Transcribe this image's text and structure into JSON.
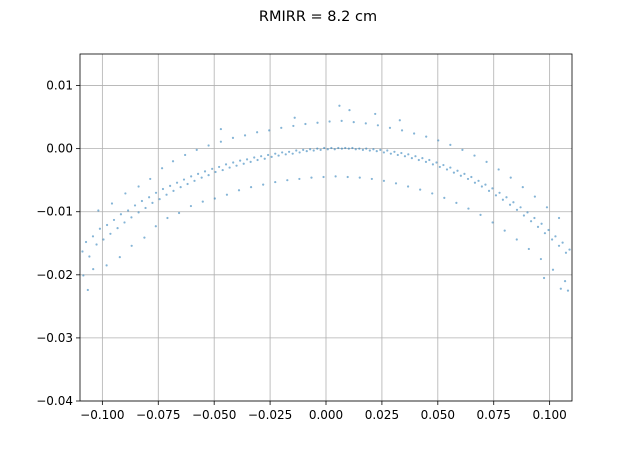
{
  "chart_data": {
    "type": "scatter",
    "title": "RMIRR = 8.2 cm",
    "xlabel": "",
    "ylabel": "",
    "xlim": [
      -0.11,
      0.11
    ],
    "ylim": [
      -0.04,
      0.015
    ],
    "grid": true,
    "marker_color": "#1f77b4",
    "marker_alpha": 0.55,
    "x_ticks": [
      {
        "value": -0.1,
        "label": "−0.100"
      },
      {
        "value": -0.075,
        "label": "−0.075"
      },
      {
        "value": -0.05,
        "label": "−0.050"
      },
      {
        "value": -0.025,
        "label": "−0.025"
      },
      {
        "value": 0.0,
        "label": "0.000"
      },
      {
        "value": 0.025,
        "label": "0.025"
      },
      {
        "value": 0.05,
        "label": "0.050"
      },
      {
        "value": 0.075,
        "label": "0.075"
      },
      {
        "value": 0.1,
        "label": "0.100"
      }
    ],
    "y_ticks": [
      {
        "value": 0.01,
        "label": "0.01"
      },
      {
        "value": 0.0,
        "label": "0.00"
      },
      {
        "value": -0.01,
        "label": "−0.01"
      },
      {
        "value": -0.02,
        "label": "−0.02"
      },
      {
        "value": -0.03,
        "label": "−0.03"
      },
      {
        "value": -0.04,
        "label": "−0.04"
      }
    ],
    "points": [
      [
        -0.1089,
        -0.0163
      ],
      [
        -0.1073,
        -0.0148
      ],
      [
        -0.1058,
        -0.0171
      ],
      [
        -0.1042,
        -0.0139
      ],
      [
        -0.1026,
        -0.0152
      ],
      [
        -0.1011,
        -0.0127
      ],
      [
        -0.0995,
        -0.0144
      ],
      [
        -0.0979,
        -0.0121
      ],
      [
        -0.0964,
        -0.0135
      ],
      [
        -0.0948,
        -0.0113
      ],
      [
        -0.0932,
        -0.0126
      ],
      [
        -0.0917,
        -0.0104
      ],
      [
        -0.0901,
        -0.0117
      ],
      [
        -0.0885,
        -0.0098
      ],
      [
        -0.087,
        -0.0109
      ],
      [
        -0.0854,
        -0.009
      ],
      [
        -0.0838,
        -0.0101
      ],
      [
        -0.0823,
        -0.0083
      ],
      [
        -0.0807,
        -0.0094
      ],
      [
        -0.0791,
        -0.0077
      ],
      [
        -0.0776,
        -0.0086
      ],
      [
        -0.076,
        -0.007
      ],
      [
        -0.0744,
        -0.008
      ],
      [
        -0.0729,
        -0.0064
      ],
      [
        -0.0713,
        -0.0073
      ],
      [
        -0.0697,
        -0.0059
      ],
      [
        -0.0682,
        -0.0067
      ],
      [
        -0.0666,
        -0.0054
      ],
      [
        -0.065,
        -0.0061
      ],
      [
        -0.0635,
        -0.0049
      ],
      [
        -0.0619,
        -0.0056
      ],
      [
        -0.0603,
        -0.0044
      ],
      [
        -0.0588,
        -0.0051
      ],
      [
        -0.0572,
        -0.004
      ],
      [
        -0.0556,
        -0.0046
      ],
      [
        -0.0541,
        -0.0036
      ],
      [
        -0.0525,
        -0.0042
      ],
      [
        -0.0509,
        -0.0032
      ],
      [
        -0.0494,
        -0.0037
      ],
      [
        -0.0478,
        -0.0029
      ],
      [
        -0.0462,
        -0.0034
      ],
      [
        -0.0447,
        -0.0025
      ],
      [
        -0.0431,
        -0.003
      ],
      [
        -0.0415,
        -0.0022
      ],
      [
        -0.04,
        -0.0027
      ],
      [
        -0.0384,
        -0.0019
      ],
      [
        -0.0368,
        -0.0024
      ],
      [
        -0.0353,
        -0.0017
      ],
      [
        -0.0337,
        -0.0021
      ],
      [
        -0.0321,
        -0.0014
      ],
      [
        -0.0306,
        -0.0018
      ],
      [
        -0.029,
        -0.0012
      ],
      [
        -0.0274,
        -0.0016
      ],
      [
        -0.0259,
        -0.001
      ],
      [
        -0.0243,
        -0.0013
      ],
      [
        -0.0227,
        -0.0008
      ],
      [
        -0.0212,
        -0.0011
      ],
      [
        -0.0196,
        -0.0006
      ],
      [
        -0.018,
        -0.0009
      ],
      [
        -0.0165,
        -0.0005
      ],
      [
        -0.0149,
        -0.0008
      ],
      [
        -0.0133,
        -0.0003
      ],
      [
        -0.0118,
        -0.0006
      ],
      [
        -0.0102,
        -0.0002
      ],
      [
        -0.0086,
        -0.0004
      ],
      [
        -0.0071,
        -0.0001
      ],
      [
        -0.0055,
        -0.0003
      ],
      [
        -0.0039,
        0.0
      ],
      [
        -0.0024,
        -0.0002
      ],
      [
        -0.0008,
        0.0001
      ],
      [
        0.0008,
        -0.0001
      ],
      [
        0.0024,
        0.0001
      ],
      [
        0.0039,
        -0.0001
      ],
      [
        0.0055,
        0.0001
      ],
      [
        0.0071,
        0.0
      ],
      [
        0.0086,
        0.0001
      ],
      [
        0.0102,
        0.0
      ],
      [
        0.0118,
        0.0001
      ],
      [
        0.0133,
        -0.0001
      ],
      [
        0.0149,
        0.0
      ],
      [
        0.0165,
        -0.0002
      ],
      [
        0.018,
        0.0
      ],
      [
        0.0196,
        -0.0003
      ],
      [
        0.0212,
        -0.0001
      ],
      [
        0.0227,
        -0.0004
      ],
      [
        0.0243,
        -0.0002
      ],
      [
        0.0259,
        -0.0006
      ],
      [
        0.0274,
        -0.0003
      ],
      [
        0.029,
        -0.0008
      ],
      [
        0.0306,
        -0.0005
      ],
      [
        0.0321,
        -0.001
      ],
      [
        0.0337,
        -0.0007
      ],
      [
        0.0353,
        -0.0012
      ],
      [
        0.0368,
        -0.0009
      ],
      [
        0.0384,
        -0.0015
      ],
      [
        0.04,
        -0.0012
      ],
      [
        0.0415,
        -0.0018
      ],
      [
        0.0431,
        -0.0015
      ],
      [
        0.0447,
        -0.0021
      ],
      [
        0.0462,
        -0.0018
      ],
      [
        0.0478,
        -0.0025
      ],
      [
        0.0494,
        -0.0022
      ],
      [
        0.0509,
        -0.0029
      ],
      [
        0.0525,
        -0.0026
      ],
      [
        0.0541,
        -0.0033
      ],
      [
        0.0556,
        -0.003
      ],
      [
        0.0572,
        -0.0038
      ],
      [
        0.0588,
        -0.0035
      ],
      [
        0.0603,
        -0.0043
      ],
      [
        0.0619,
        -0.004
      ],
      [
        0.0635,
        -0.0048
      ],
      [
        0.065,
        -0.0045
      ],
      [
        0.0666,
        -0.0054
      ],
      [
        0.0682,
        -0.0051
      ],
      [
        0.0697,
        -0.006
      ],
      [
        0.0713,
        -0.0057
      ],
      [
        0.0729,
        -0.0067
      ],
      [
        0.0744,
        -0.0063
      ],
      [
        0.076,
        -0.0074
      ],
      [
        0.0776,
        -0.007
      ],
      [
        0.0791,
        -0.0081
      ],
      [
        0.0807,
        -0.0077
      ],
      [
        0.0823,
        -0.0089
      ],
      [
        0.0838,
        -0.0085
      ],
      [
        0.0854,
        -0.0097
      ],
      [
        0.087,
        -0.0093
      ],
      [
        0.0885,
        -0.0106
      ],
      [
        0.0901,
        -0.0101
      ],
      [
        0.0917,
        -0.0115
      ],
      [
        0.0932,
        -0.011
      ],
      [
        0.0948,
        -0.0124
      ],
      [
        0.0964,
        -0.0119
      ],
      [
        0.0979,
        -0.0134
      ],
      [
        0.0995,
        -0.0129
      ],
      [
        0.1011,
        -0.0144
      ],
      [
        0.1026,
        -0.0139
      ],
      [
        0.1042,
        -0.0154
      ],
      [
        0.1058,
        -0.0149
      ],
      [
        0.1073,
        -0.0165
      ],
      [
        0.1089,
        -0.016
      ],
      [
        -0.1085,
        -0.0201
      ],
      [
        -0.1065,
        -0.0224
      ],
      [
        -0.1041,
        -0.0191
      ],
      [
        -0.1018,
        -0.0098
      ],
      [
        -0.0981,
        -0.0185
      ],
      [
        -0.0957,
        -0.0087
      ],
      [
        -0.0922,
        -0.0172
      ],
      [
        -0.0897,
        -0.0071
      ],
      [
        -0.0869,
        -0.0154
      ],
      [
        -0.0838,
        -0.006
      ],
      [
        -0.0812,
        -0.0141
      ],
      [
        -0.0786,
        -0.0048
      ],
      [
        -0.0761,
        -0.0123
      ],
      [
        -0.0733,
        -0.0031
      ],
      [
        -0.0709,
        -0.011
      ],
      [
        -0.0684,
        -0.002
      ],
      [
        -0.0657,
        -0.0102
      ],
      [
        -0.063,
        -0.001
      ],
      [
        -0.0604,
        -0.0091
      ],
      [
        -0.0578,
        -0.0002
      ],
      [
        -0.0551,
        -0.0084
      ],
      [
        -0.0525,
        0.0005
      ],
      [
        -0.0497,
        -0.0079
      ],
      [
        -0.047,
        0.0011
      ],
      [
        -0.0443,
        -0.0073
      ],
      [
        -0.0416,
        0.0017
      ],
      [
        -0.0389,
        -0.0066
      ],
      [
        -0.0362,
        0.0021
      ],
      [
        -0.0335,
        -0.0061
      ],
      [
        -0.0308,
        0.0026
      ],
      [
        -0.0281,
        -0.0057
      ],
      [
        -0.0254,
        0.0029
      ],
      [
        -0.0227,
        -0.0053
      ],
      [
        -0.02,
        0.0033
      ],
      [
        -0.0173,
        -0.005
      ],
      [
        -0.0146,
        0.0036
      ],
      [
        -0.0119,
        -0.0048
      ],
      [
        -0.0092,
        0.0039
      ],
      [
        -0.0065,
        -0.0046
      ],
      [
        -0.0038,
        0.0041
      ],
      [
        -0.0011,
        -0.0045
      ],
      [
        0.0016,
        0.0043
      ],
      [
        0.0043,
        -0.0044
      ],
      [
        0.007,
        0.0044
      ],
      [
        0.0097,
        -0.0045
      ],
      [
        0.0124,
        0.0042
      ],
      [
        0.0151,
        -0.0046
      ],
      [
        0.0178,
        0.004
      ],
      [
        0.0205,
        -0.0048
      ],
      [
        0.0232,
        0.0037
      ],
      [
        0.0259,
        -0.0051
      ],
      [
        0.0286,
        0.0033
      ],
      [
        0.0313,
        -0.0055
      ],
      [
        0.034,
        0.0029
      ],
      [
        0.0367,
        -0.006
      ],
      [
        0.0394,
        0.0024
      ],
      [
        0.0421,
        -0.0065
      ],
      [
        0.0448,
        0.0019
      ],
      [
        0.0475,
        -0.0071
      ],
      [
        0.0502,
        0.0013
      ],
      [
        0.0529,
        -0.0078
      ],
      [
        0.0556,
        0.0006
      ],
      [
        0.0583,
        -0.0086
      ],
      [
        0.061,
        -0.0002
      ],
      [
        0.0637,
        -0.0095
      ],
      [
        0.0664,
        -0.0011
      ],
      [
        0.0691,
        -0.0105
      ],
      [
        0.0718,
        -0.0021
      ],
      [
        0.0745,
        -0.0117
      ],
      [
        0.0772,
        -0.0033
      ],
      [
        0.0799,
        -0.013
      ],
      [
        0.0826,
        -0.0046
      ],
      [
        0.0853,
        -0.0144
      ],
      [
        0.088,
        -0.0061
      ],
      [
        0.0907,
        -0.0159
      ],
      [
        0.0934,
        -0.0076
      ],
      [
        0.0961,
        -0.0175
      ],
      [
        0.0988,
        -0.0093
      ],
      [
        0.1015,
        -0.0192
      ],
      [
        0.1042,
        -0.011
      ],
      [
        0.1069,
        -0.021
      ],
      [
        0.1082,
        -0.0225
      ],
      [
        0.105,
        -0.0222
      ],
      [
        0.0975,
        -0.0205
      ],
      [
        0.006,
        0.0068
      ],
      [
        0.0105,
        0.0061
      ],
      [
        -0.014,
        0.0049
      ],
      [
        0.022,
        0.0055
      ],
      [
        -0.047,
        0.0031
      ],
      [
        0.033,
        0.0045
      ]
    ]
  }
}
